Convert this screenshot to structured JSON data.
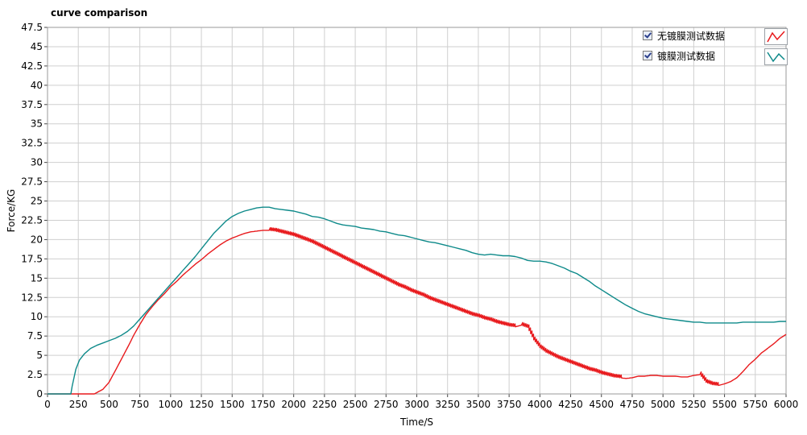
{
  "chart_data": {
    "type": "line",
    "title": "curve comparison",
    "xlabel": "Time/S",
    "ylabel": "Force/KG",
    "xlim": [
      0,
      6000
    ],
    "ylim": [
      0,
      47.5
    ],
    "grid": true,
    "legend_position": "top-right",
    "x_ticks": [
      "0",
      "250",
      "500",
      "750",
      "1000",
      "1250",
      "1500",
      "1750",
      "2000",
      "2250",
      "2500",
      "2750",
      "3000",
      "3250",
      "3500",
      "3750",
      "4000",
      "4250",
      "4500",
      "4750",
      "5000",
      "5250",
      "5500",
      "5750",
      "6000"
    ],
    "y_ticks": [
      "0",
      "2.5",
      "5",
      "7.5",
      "10",
      "12.5",
      "15",
      "17.5",
      "20",
      "22.5",
      "25",
      "27.5",
      "30",
      "32.5",
      "35",
      "37.5",
      "40",
      "42.5",
      "45",
      "47.5"
    ],
    "series": [
      {
        "name": "无镀膜测试数据",
        "color": "#e8191c",
        "style": "sawtooth",
        "points": [
          [
            0,
            0
          ],
          [
            380,
            0
          ],
          [
            450,
            0.6
          ],
          [
            500,
            1.5
          ],
          [
            550,
            3
          ],
          [
            600,
            4.5
          ],
          [
            650,
            6
          ],
          [
            700,
            7.6
          ],
          [
            750,
            9
          ],
          [
            800,
            10.3
          ],
          [
            850,
            11.3
          ],
          [
            900,
            12.2
          ],
          [
            950,
            13
          ],
          [
            1000,
            13.9
          ],
          [
            1050,
            14.6
          ],
          [
            1100,
            15.4
          ],
          [
            1150,
            16.1
          ],
          [
            1200,
            16.8
          ],
          [
            1250,
            17.4
          ],
          [
            1300,
            18.1
          ],
          [
            1350,
            18.7
          ],
          [
            1400,
            19.3
          ],
          [
            1450,
            19.8
          ],
          [
            1500,
            20.2
          ],
          [
            1550,
            20.5
          ],
          [
            1600,
            20.8
          ],
          [
            1650,
            21
          ],
          [
            1700,
            21.1
          ],
          [
            1750,
            21.2
          ],
          [
            1800,
            21.2
          ],
          [
            1850,
            21.1
          ],
          [
            1900,
            20.9
          ],
          [
            1950,
            20.7
          ],
          [
            2000,
            20.5
          ],
          [
            2050,
            20.2
          ],
          [
            2100,
            19.9
          ],
          [
            2150,
            19.6
          ],
          [
            2200,
            19.2
          ],
          [
            2250,
            18.8
          ],
          [
            2300,
            18.4
          ],
          [
            2350,
            18
          ],
          [
            2400,
            17.6
          ],
          [
            2450,
            17.2
          ],
          [
            2500,
            16.8
          ],
          [
            2550,
            16.4
          ],
          [
            2600,
            16
          ],
          [
            2650,
            15.6
          ],
          [
            2700,
            15.2
          ],
          [
            2750,
            14.8
          ],
          [
            2800,
            14.4
          ],
          [
            2850,
            14
          ],
          [
            2900,
            13.7
          ],
          [
            2950,
            13.3
          ],
          [
            3000,
            13
          ],
          [
            3050,
            12.7
          ],
          [
            3100,
            12.3
          ],
          [
            3150,
            12
          ],
          [
            3200,
            11.7
          ],
          [
            3250,
            11.4
          ],
          [
            3300,
            11.1
          ],
          [
            3350,
            10.8
          ],
          [
            3400,
            10.5
          ],
          [
            3450,
            10.2
          ],
          [
            3500,
            10
          ],
          [
            3550,
            9.7
          ],
          [
            3600,
            9.5
          ],
          [
            3650,
            9.2
          ],
          [
            3700,
            9
          ],
          [
            3750,
            8.8
          ],
          [
            3800,
            8.7
          ],
          [
            3850,
            8.9
          ],
          [
            3900,
            8.6
          ],
          [
            3950,
            7
          ],
          [
            4000,
            6
          ],
          [
            4050,
            5.4
          ],
          [
            4100,
            5
          ],
          [
            4150,
            4.6
          ],
          [
            4200,
            4.3
          ],
          [
            4250,
            4
          ],
          [
            4300,
            3.7
          ],
          [
            4350,
            3.4
          ],
          [
            4400,
            3.1
          ],
          [
            4450,
            2.9
          ],
          [
            4500,
            2.6
          ],
          [
            4550,
            2.4
          ],
          [
            4600,
            2.2
          ],
          [
            4650,
            2.1
          ],
          [
            4700,
            2
          ],
          [
            4750,
            2.1
          ],
          [
            4800,
            2.3
          ],
          [
            4850,
            2.3
          ],
          [
            4900,
            2.4
          ],
          [
            4950,
            2.4
          ],
          [
            5000,
            2.3
          ],
          [
            5050,
            2.3
          ],
          [
            5100,
            2.3
          ],
          [
            5150,
            2.2
          ],
          [
            5200,
            2.2
          ],
          [
            5250,
            2.4
          ],
          [
            5300,
            2.5
          ],
          [
            5350,
            1.5
          ],
          [
            5400,
            1.2
          ],
          [
            5450,
            1.1
          ],
          [
            5500,
            1.3
          ],
          [
            5550,
            1.6
          ],
          [
            5600,
            2.1
          ],
          [
            5650,
            2.9
          ],
          [
            5700,
            3.8
          ],
          [
            5750,
            4.5
          ],
          [
            5800,
            5.3
          ],
          [
            5850,
            5.9
          ],
          [
            5900,
            6.5
          ],
          [
            5950,
            7.2
          ],
          [
            6000,
            7.7
          ]
        ]
      },
      {
        "name": "镀膜测试数据",
        "color": "#0e8a8a",
        "style": "smooth",
        "points": [
          [
            0,
            0
          ],
          [
            190,
            0
          ],
          [
            200,
            1
          ],
          [
            230,
            3.2
          ],
          [
            260,
            4.4
          ],
          [
            300,
            5.2
          ],
          [
            350,
            5.9
          ],
          [
            400,
            6.3
          ],
          [
            450,
            6.6
          ],
          [
            500,
            6.9
          ],
          [
            550,
            7.2
          ],
          [
            600,
            7.6
          ],
          [
            650,
            8.1
          ],
          [
            700,
            8.8
          ],
          [
            750,
            9.7
          ],
          [
            800,
            10.6
          ],
          [
            850,
            11.5
          ],
          [
            900,
            12.4
          ],
          [
            950,
            13.3
          ],
          [
            1000,
            14.2
          ],
          [
            1050,
            15.1
          ],
          [
            1100,
            16
          ],
          [
            1150,
            16.9
          ],
          [
            1200,
            17.8
          ],
          [
            1250,
            18.8
          ],
          [
            1300,
            19.8
          ],
          [
            1350,
            20.8
          ],
          [
            1400,
            21.6
          ],
          [
            1450,
            22.4
          ],
          [
            1500,
            23
          ],
          [
            1550,
            23.4
          ],
          [
            1600,
            23.7
          ],
          [
            1650,
            23.9
          ],
          [
            1700,
            24.1
          ],
          [
            1750,
            24.2
          ],
          [
            1800,
            24.2
          ],
          [
            1850,
            24
          ],
          [
            1900,
            23.9
          ],
          [
            1950,
            23.8
          ],
          [
            2000,
            23.7
          ],
          [
            2050,
            23.5
          ],
          [
            2100,
            23.3
          ],
          [
            2150,
            23
          ],
          [
            2200,
            22.9
          ],
          [
            2250,
            22.7
          ],
          [
            2300,
            22.4
          ],
          [
            2350,
            22.1
          ],
          [
            2400,
            21.9
          ],
          [
            2450,
            21.8
          ],
          [
            2500,
            21.7
          ],
          [
            2550,
            21.5
          ],
          [
            2600,
            21.4
          ],
          [
            2650,
            21.3
          ],
          [
            2700,
            21.1
          ],
          [
            2750,
            21
          ],
          [
            2800,
            20.8
          ],
          [
            2850,
            20.6
          ],
          [
            2900,
            20.5
          ],
          [
            2950,
            20.3
          ],
          [
            3000,
            20.1
          ],
          [
            3050,
            19.9
          ],
          [
            3100,
            19.7
          ],
          [
            3150,
            19.6
          ],
          [
            3200,
            19.4
          ],
          [
            3250,
            19.2
          ],
          [
            3300,
            19
          ],
          [
            3350,
            18.8
          ],
          [
            3400,
            18.6
          ],
          [
            3450,
            18.3
          ],
          [
            3500,
            18.1
          ],
          [
            3550,
            18
          ],
          [
            3600,
            18.1
          ],
          [
            3650,
            18
          ],
          [
            3700,
            17.9
          ],
          [
            3750,
            17.9
          ],
          [
            3800,
            17.8
          ],
          [
            3850,
            17.6
          ],
          [
            3900,
            17.3
          ],
          [
            3950,
            17.2
          ],
          [
            4000,
            17.2
          ],
          [
            4050,
            17.1
          ],
          [
            4100,
            16.9
          ],
          [
            4150,
            16.6
          ],
          [
            4200,
            16.3
          ],
          [
            4250,
            15.9
          ],
          [
            4300,
            15.6
          ],
          [
            4350,
            15.1
          ],
          [
            4400,
            14.6
          ],
          [
            4450,
            14
          ],
          [
            4500,
            13.5
          ],
          [
            4550,
            13
          ],
          [
            4600,
            12.5
          ],
          [
            4650,
            12
          ],
          [
            4700,
            11.5
          ],
          [
            4750,
            11.1
          ],
          [
            4800,
            10.7
          ],
          [
            4850,
            10.4
          ],
          [
            4900,
            10.2
          ],
          [
            4950,
            10
          ],
          [
            5000,
            9.8
          ],
          [
            5050,
            9.7
          ],
          [
            5100,
            9.6
          ],
          [
            5150,
            9.5
          ],
          [
            5200,
            9.4
          ],
          [
            5250,
            9.3
          ],
          [
            5300,
            9.3
          ],
          [
            5350,
            9.2
          ],
          [
            5400,
            9.2
          ],
          [
            5450,
            9.2
          ],
          [
            5500,
            9.2
          ],
          [
            5550,
            9.2
          ],
          [
            5600,
            9.2
          ],
          [
            5650,
            9.3
          ],
          [
            5700,
            9.3
          ],
          [
            5750,
            9.3
          ],
          [
            5800,
            9.3
          ],
          [
            5850,
            9.3
          ],
          [
            5900,
            9.3
          ],
          [
            5950,
            9.4
          ],
          [
            6000,
            9.4
          ]
        ]
      }
    ]
  }
}
